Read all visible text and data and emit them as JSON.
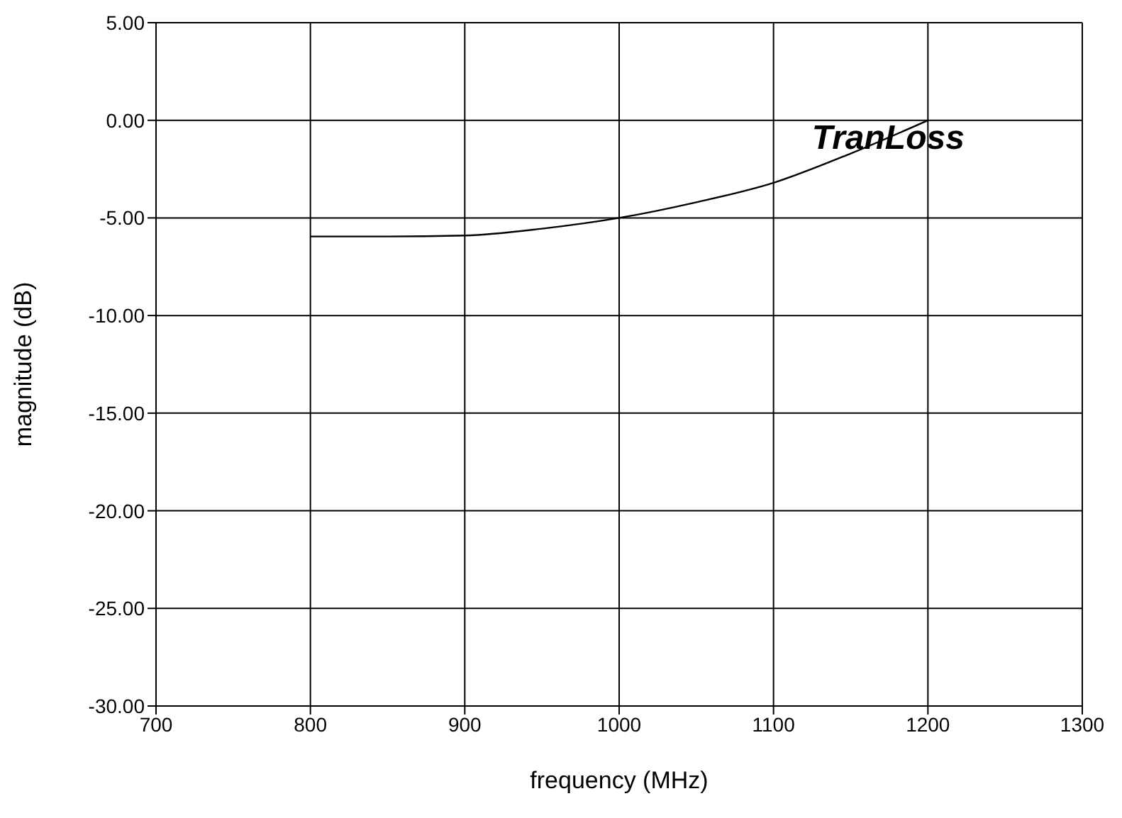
{
  "chart_data": {
    "type": "line",
    "xlabel": "frequency (MHz)",
    "ylabel": "magnitude (dB)",
    "x": [
      800,
      850,
      900,
      950,
      1000,
      1050,
      1100,
      1150,
      1200
    ],
    "series": [
      {
        "name": "TranLoss",
        "color": "#000000",
        "values": [
          -5.95,
          -5.95,
          -5.9,
          -5.55,
          -5.0,
          -4.2,
          -3.2,
          -1.7,
          0.0
        ]
      }
    ],
    "xlim": [
      700,
      1300
    ],
    "xticks": [
      700,
      800,
      900,
      1000,
      1100,
      1200,
      1300
    ],
    "ylim": [
      -30,
      5
    ],
    "yticks": [
      {
        "value": 5,
        "label": "5.00"
      },
      {
        "value": 0,
        "label": "0.00"
      },
      {
        "value": -5,
        "label": "-5.00"
      },
      {
        "value": -10,
        "label": "-10.00"
      },
      {
        "value": -15,
        "label": "-15.00"
      },
      {
        "value": -20,
        "label": "-20.00"
      },
      {
        "value": -25,
        "label": "-25.00"
      },
      {
        "value": -30,
        "label": "-30.00"
      }
    ],
    "grid": true,
    "marker": "none",
    "line_style": "solid",
    "legend": false
  }
}
